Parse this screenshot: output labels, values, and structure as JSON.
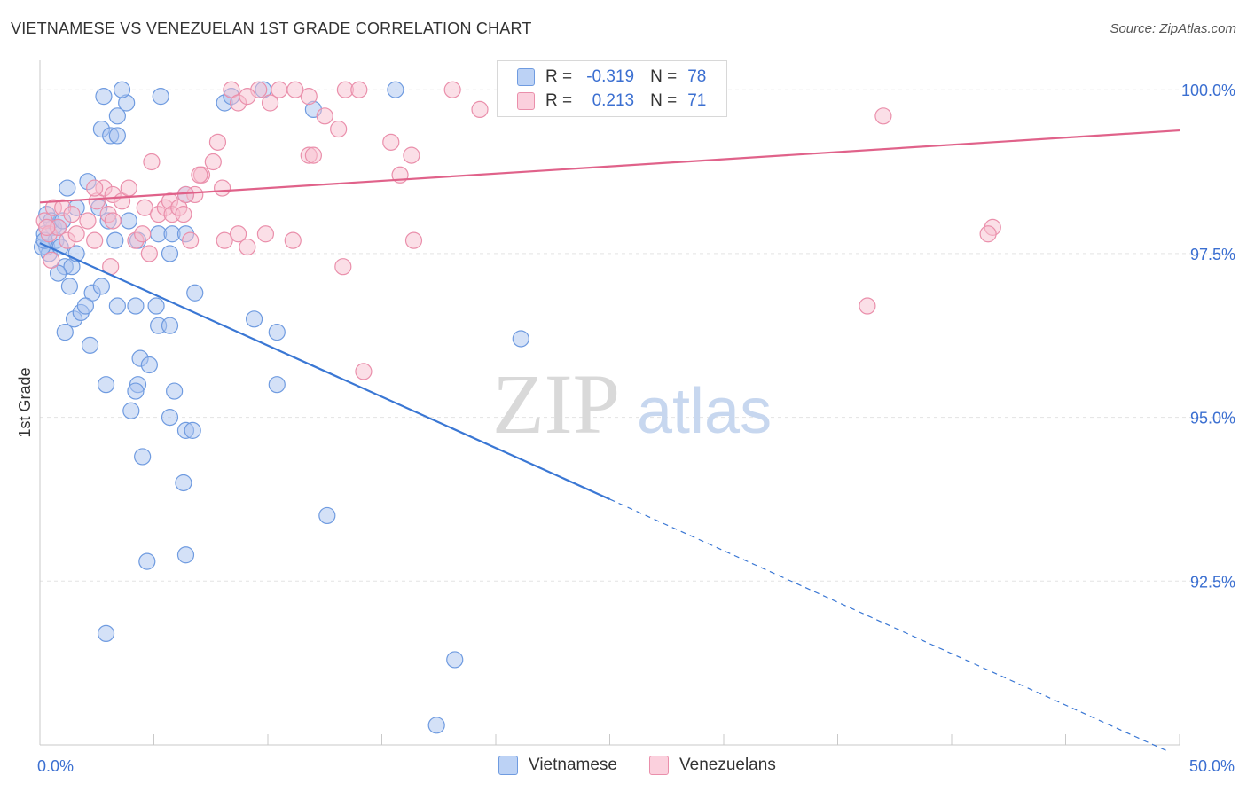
{
  "title": "VIETNAMESE VS VENEZUELAN 1ST GRADE CORRELATION CHART",
  "source": "Source: ZipAtlas.com",
  "watermark": {
    "zip": "ZIP",
    "atlas": "atlas"
  },
  "legend": {
    "r_label": "R =",
    "n_label": "N =",
    "rows": [
      {
        "name": "Vietnamese",
        "r": "-0.319",
        "n": "78",
        "fill": "#a9c4f0",
        "stroke": "#6f9be0"
      },
      {
        "name": "Venezuelans",
        "r": "0.213",
        "n": "71",
        "fill": "#f8bfd0",
        "stroke": "#ea8fab"
      }
    ]
  },
  "chart_data": {
    "type": "scatter",
    "title": "VIETNAMESE VS VENEZUELAN 1ST GRADE CORRELATION CHART",
    "xlabel": "",
    "ylabel": "1st Grade",
    "xlim": [
      0,
      50
    ],
    "ylim": [
      90.0,
      100.45
    ],
    "x_tick_labels": [
      {
        "value": 0,
        "label": "0.0%"
      },
      {
        "value": 50,
        "label": "50.0%"
      }
    ],
    "y_tick_labels": [
      {
        "value": 100.0,
        "label": "100.0%"
      },
      {
        "value": 97.5,
        "label": "97.5%"
      },
      {
        "value": 95.0,
        "label": "95.0%"
      },
      {
        "value": 92.5,
        "label": "92.5%"
      }
    ],
    "x_minor_ticks": [
      0,
      5,
      10,
      15,
      20,
      25,
      30,
      35,
      40,
      45,
      50
    ],
    "grid": true,
    "series": [
      {
        "name": "Vietnamese",
        "color": "#3a77d4",
        "point_fill": "#a9c4f0",
        "point_stroke": "#6f9be0",
        "trend": {
          "x0": 0,
          "y0": 97.66,
          "x1": 25,
          "y1": 93.75,
          "dash_to_x": 49.5,
          "dash_to_y": 89.9
        },
        "points": [
          [
            0.3,
            98.1
          ],
          [
            0.6,
            97.9
          ],
          [
            0.5,
            98.0
          ],
          [
            0.2,
            97.8
          ],
          [
            0.3,
            97.6
          ],
          [
            0.4,
            97.5
          ],
          [
            0.7,
            97.7
          ],
          [
            0.8,
            97.9
          ],
          [
            0.9,
            97.6
          ],
          [
            1.0,
            98.0
          ],
          [
            1.2,
            98.5
          ],
          [
            1.6,
            98.2
          ],
          [
            2.1,
            98.6
          ],
          [
            2.6,
            98.2
          ],
          [
            3.0,
            98.0
          ],
          [
            3.3,
            97.7
          ],
          [
            3.9,
            98.0
          ],
          [
            4.3,
            97.7
          ],
          [
            5.2,
            97.8
          ],
          [
            5.7,
            97.5
          ],
          [
            5.8,
            97.8
          ],
          [
            6.4,
            97.8
          ],
          [
            6.4,
            98.4
          ],
          [
            1.1,
            97.3
          ],
          [
            1.3,
            97.0
          ],
          [
            1.4,
            97.3
          ],
          [
            1.6,
            97.5
          ],
          [
            0.8,
            97.2
          ],
          [
            2.3,
            96.9
          ],
          [
            2.7,
            97.0
          ],
          [
            3.4,
            96.7
          ],
          [
            4.2,
            96.7
          ],
          [
            5.1,
            96.7
          ],
          [
            5.2,
            96.4
          ],
          [
            5.7,
            96.4
          ],
          [
            1.5,
            96.5
          ],
          [
            1.8,
            96.6
          ],
          [
            2.0,
            96.7
          ],
          [
            1.1,
            96.3
          ],
          [
            2.2,
            96.1
          ],
          [
            6.8,
            96.9
          ],
          [
            9.4,
            96.5
          ],
          [
            10.4,
            96.3
          ],
          [
            4.4,
            95.9
          ],
          [
            4.8,
            95.8
          ],
          [
            2.9,
            95.5
          ],
          [
            4.3,
            95.5
          ],
          [
            4.2,
            95.4
          ],
          [
            5.9,
            95.4
          ],
          [
            4.0,
            95.1
          ],
          [
            5.7,
            95.0
          ],
          [
            6.4,
            94.8
          ],
          [
            6.7,
            94.8
          ],
          [
            10.4,
            95.5
          ],
          [
            21.1,
            96.2
          ],
          [
            4.5,
            94.4
          ],
          [
            6.3,
            94.0
          ],
          [
            12.6,
            93.5
          ],
          [
            4.7,
            92.8
          ],
          [
            6.4,
            92.9
          ],
          [
            2.9,
            91.7
          ],
          [
            18.2,
            91.3
          ],
          [
            17.4,
            90.3
          ],
          [
            2.7,
            99.4
          ],
          [
            3.1,
            99.3
          ],
          [
            3.4,
            99.3
          ],
          [
            3.4,
            99.6
          ],
          [
            3.8,
            99.8
          ],
          [
            2.8,
            99.9
          ],
          [
            3.6,
            100.0
          ],
          [
            5.3,
            99.9
          ],
          [
            8.1,
            99.8
          ],
          [
            8.4,
            99.9
          ],
          [
            9.8,
            100.0
          ],
          [
            12.0,
            99.7
          ],
          [
            15.6,
            100.0
          ],
          [
            0.1,
            97.6
          ],
          [
            0.2,
            97.7
          ]
        ]
      },
      {
        "name": "Venezuelans",
        "color": "#e0628a",
        "point_fill": "#f8bfd0",
        "point_stroke": "#ea8fab",
        "trend": {
          "x0": 0,
          "y0": 98.28,
          "x1": 50,
          "y1": 99.38
        },
        "points": [
          [
            0.2,
            98.0
          ],
          [
            0.4,
            97.8
          ],
          [
            0.6,
            98.2
          ],
          [
            0.8,
            97.9
          ],
          [
            1.0,
            98.2
          ],
          [
            1.2,
            97.7
          ],
          [
            1.6,
            97.8
          ],
          [
            2.1,
            98.0
          ],
          [
            2.4,
            97.7
          ],
          [
            2.5,
            98.3
          ],
          [
            2.8,
            98.5
          ],
          [
            3.0,
            98.1
          ],
          [
            3.2,
            98.4
          ],
          [
            3.6,
            98.3
          ],
          [
            3.9,
            98.5
          ],
          [
            4.2,
            97.7
          ],
          [
            4.5,
            97.8
          ],
          [
            4.6,
            98.2
          ],
          [
            4.8,
            97.5
          ],
          [
            5.2,
            98.1
          ],
          [
            5.5,
            98.2
          ],
          [
            5.7,
            98.3
          ],
          [
            5.8,
            98.1
          ],
          [
            6.1,
            98.2
          ],
          [
            6.3,
            98.1
          ],
          [
            6.6,
            97.7
          ],
          [
            6.8,
            98.4
          ],
          [
            7.1,
            98.7
          ],
          [
            7.6,
            98.9
          ],
          [
            8.0,
            98.5
          ],
          [
            8.1,
            97.7
          ],
          [
            8.7,
            97.8
          ],
          [
            9.1,
            97.6
          ],
          [
            9.9,
            97.8
          ],
          [
            11.1,
            97.7
          ],
          [
            11.8,
            99.0
          ],
          [
            12.0,
            99.0
          ],
          [
            13.1,
            99.4
          ],
          [
            13.3,
            97.3
          ],
          [
            14.2,
            95.7
          ],
          [
            15.4,
            99.2
          ],
          [
            15.8,
            98.7
          ],
          [
            16.3,
            99.0
          ],
          [
            16.4,
            97.7
          ],
          [
            19.3,
            99.7
          ],
          [
            0.5,
            97.4
          ],
          [
            0.3,
            97.9
          ],
          [
            1.4,
            98.1
          ],
          [
            2.4,
            98.5
          ],
          [
            3.1,
            97.3
          ],
          [
            4.9,
            98.9
          ],
          [
            6.4,
            98.4
          ],
          [
            7.0,
            98.7
          ],
          [
            7.8,
            99.2
          ],
          [
            8.4,
            100.0
          ],
          [
            8.7,
            99.8
          ],
          [
            9.6,
            100.0
          ],
          [
            10.1,
            99.8
          ],
          [
            10.5,
            100.0
          ],
          [
            11.8,
            99.9
          ],
          [
            12.5,
            99.6
          ],
          [
            13.4,
            100.0
          ],
          [
            14.0,
            100.0
          ],
          [
            18.1,
            100.0
          ],
          [
            9.1,
            99.9
          ],
          [
            11.2,
            100.0
          ],
          [
            36.3,
            96.7
          ],
          [
            37.0,
            99.6
          ],
          [
            41.8,
            97.9
          ],
          [
            41.6,
            97.8
          ],
          [
            3.2,
            98.0
          ]
        ]
      }
    ]
  }
}
